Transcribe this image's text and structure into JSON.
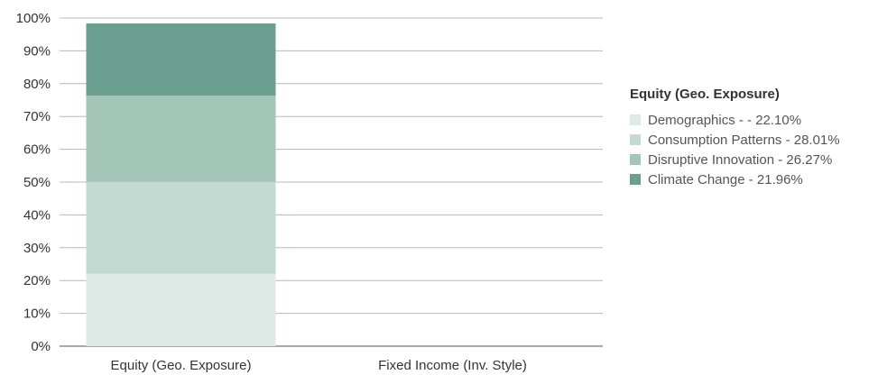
{
  "chart_data": {
    "type": "bar",
    "stacked": true,
    "categories": [
      "Equity (Geo. Exposure)",
      "Fixed Income (Inv. Style)"
    ],
    "series": [
      {
        "name": "Demographics - - 22.10%",
        "color": "#dfe9e5",
        "values": [
          22.1,
          0
        ]
      },
      {
        "name": "Consumption Patterns - 28.01%",
        "color": "#c2dad2",
        "values": [
          28.01,
          0
        ]
      },
      {
        "name": "Disruptive Innovation - 26.27%",
        "color": "#a3c6b9",
        "values": [
          26.27,
          0
        ]
      },
      {
        "name": "Climate Change - 21.96%",
        "color": "#6b9f8f",
        "values": [
          21.96,
          0
        ]
      }
    ],
    "yticks": [
      "0%",
      "10%",
      "20%",
      "30%",
      "40%",
      "50%",
      "60%",
      "70%",
      "80%",
      "90%",
      "100%"
    ],
    "ylim": [
      0,
      100
    ],
    "grid": true,
    "legend": {
      "title": "Equity (Geo. Exposure)",
      "position": "right"
    }
  }
}
